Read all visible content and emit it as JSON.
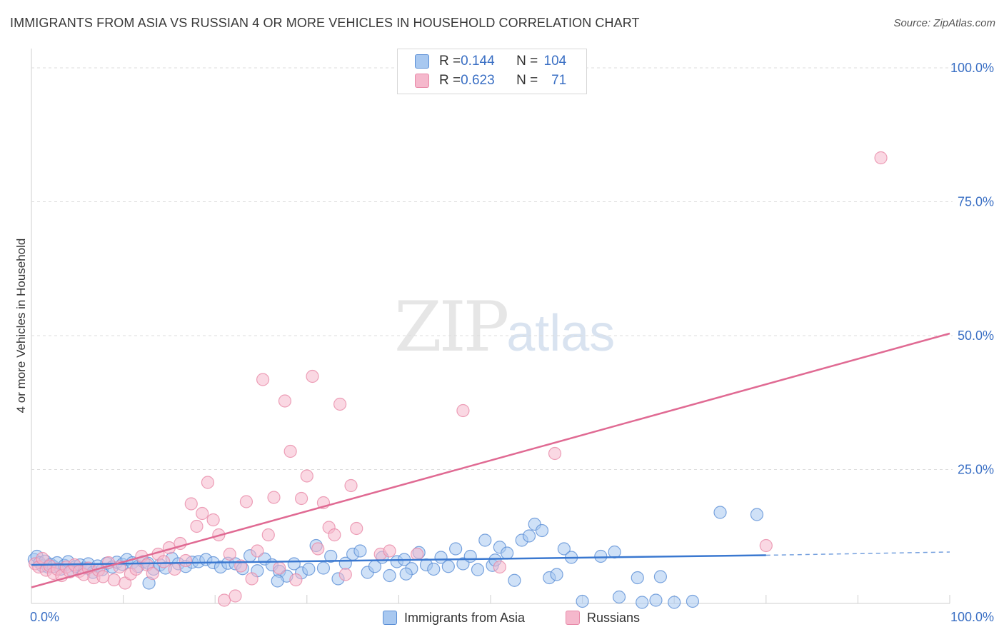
{
  "header": {
    "title": "IMMIGRANTS FROM ASIA VS RUSSIAN 4 OR MORE VEHICLES IN HOUSEHOLD CORRELATION CHART",
    "source": "Source: ZipAtlas.com"
  },
  "watermark": {
    "zip": "ZIP",
    "atlas": "atlas"
  },
  "legend": {
    "rows": [
      {
        "r_label": "R = ",
        "r_value": "0.144",
        "n_label": "N = ",
        "n_value": "104",
        "color": "#a8c8f0"
      },
      {
        "r_label": "R = ",
        "r_value": "0.623",
        "n_label": "N = ",
        "n_value": "71",
        "color": "#f5b8cc"
      }
    ]
  },
  "bottom_legend": {
    "items": [
      {
        "label": "Immigrants from Asia",
        "color": "#a8c8f0"
      },
      {
        "label": "Russians",
        "color": "#f5b8cc"
      }
    ]
  },
  "chart_data": {
    "type": "scatter",
    "title": "IMMIGRANTS FROM ASIA VS RUSSIAN 4 OR MORE VEHICLES IN HOUSEHOLD CORRELATION CHART",
    "xlabel": "",
    "ylabel": "4 or more Vehicles in Household",
    "xlim": [
      0,
      100
    ],
    "ylim": [
      0,
      100
    ],
    "x_tick_labels": [
      "0.0%",
      "100.0%"
    ],
    "y_tick_labels": [
      "100.0%",
      "75.0%",
      "50.0%",
      "25.0%"
    ],
    "y_tick_values": [
      100,
      75,
      50,
      25
    ],
    "grid": true,
    "colors": {
      "asia_fill": "#a8c8f0",
      "asia_stroke": "#5b8fd6",
      "asia_line": "#3a78d0",
      "russia_fill": "#f5b8cc",
      "russia_stroke": "#e889a8",
      "russia_line": "#e06a93"
    },
    "series": [
      {
        "name": "Immigrants from Asia",
        "trend": {
          "x": [
            0,
            80
          ],
          "y": [
            7.2,
            9.0
          ],
          "dashed_to": [
            100,
            9.6
          ]
        },
        "points": [
          [
            0.3,
            8.2
          ],
          [
            0.6,
            8.8
          ],
          [
            0.9,
            7.6
          ],
          [
            1.2,
            7.0
          ],
          [
            1.5,
            7.9
          ],
          [
            1.8,
            6.8
          ],
          [
            2.1,
            7.3
          ],
          [
            2.4,
            6.9
          ],
          [
            2.8,
            7.6
          ],
          [
            3.2,
            6.4
          ],
          [
            3.6,
            7.1
          ],
          [
            4.0,
            7.8
          ],
          [
            4.4,
            6.2
          ],
          [
            4.8,
            6.9
          ],
          [
            5.3,
            7.2
          ],
          [
            5.8,
            6.6
          ],
          [
            6.2,
            7.4
          ],
          [
            6.7,
            5.8
          ],
          [
            7.2,
            7.0
          ],
          [
            7.7,
            6.3
          ],
          [
            8.2,
            7.5
          ],
          [
            8.8,
            6.8
          ],
          [
            9.3,
            7.7
          ],
          [
            9.9,
            7.3
          ],
          [
            10.4,
            8.2
          ],
          [
            11.0,
            7.6
          ],
          [
            11.6,
            6.9
          ],
          [
            12.2,
            7.8
          ],
          [
            12.7,
            7.5
          ],
          [
            13.3,
            6.4
          ],
          [
            14.0,
            7.2
          ],
          [
            14.6,
            6.6
          ],
          [
            15.3,
            8.4
          ],
          [
            16.0,
            7.4
          ],
          [
            16.8,
            6.9
          ],
          [
            17.5,
            7.7
          ],
          [
            18.2,
            7.8
          ],
          [
            19.0,
            8.2
          ],
          [
            19.8,
            7.6
          ],
          [
            20.6,
            6.8
          ],
          [
            21.4,
            7.5
          ],
          [
            22.2,
            7.4
          ],
          [
            23.0,
            6.5
          ],
          [
            23.8,
            8.9
          ],
          [
            24.6,
            6.1
          ],
          [
            25.4,
            8.3
          ],
          [
            26.2,
            7.2
          ],
          [
            27.0,
            6.0
          ],
          [
            27.8,
            5.1
          ],
          [
            28.6,
            7.4
          ],
          [
            29.4,
            5.7
          ],
          [
            30.2,
            6.4
          ],
          [
            31.0,
            10.8
          ],
          [
            31.8,
            6.6
          ],
          [
            32.6,
            8.8
          ],
          [
            33.4,
            4.6
          ],
          [
            34.2,
            7.5
          ],
          [
            35.0,
            9.2
          ],
          [
            35.8,
            9.8
          ],
          [
            36.6,
            5.8
          ],
          [
            37.4,
            6.9
          ],
          [
            38.2,
            8.6
          ],
          [
            39.0,
            5.2
          ],
          [
            39.8,
            7.8
          ],
          [
            40.6,
            8.2
          ],
          [
            41.4,
            6.5
          ],
          [
            42.2,
            9.5
          ],
          [
            43.0,
            7.2
          ],
          [
            43.8,
            6.4
          ],
          [
            44.6,
            8.6
          ],
          [
            45.4,
            6.9
          ],
          [
            46.2,
            10.2
          ],
          [
            47.0,
            7.4
          ],
          [
            47.8,
            8.8
          ],
          [
            48.6,
            6.3
          ],
          [
            49.4,
            11.8
          ],
          [
            50.2,
            7.1
          ],
          [
            51.0,
            10.5
          ],
          [
            51.8,
            9.4
          ],
          [
            52.6,
            4.3
          ],
          [
            53.4,
            11.8
          ],
          [
            54.2,
            12.6
          ],
          [
            54.8,
            14.8
          ],
          [
            55.6,
            13.6
          ],
          [
            56.4,
            4.8
          ],
          [
            57.2,
            5.4
          ],
          [
            58.0,
            10.2
          ],
          [
            58.8,
            8.6
          ],
          [
            60.0,
            0.4
          ],
          [
            62.0,
            8.8
          ],
          [
            63.5,
            9.6
          ],
          [
            64.0,
            1.2
          ],
          [
            66.0,
            4.8
          ],
          [
            66.5,
            0.2
          ],
          [
            68.0,
            0.6
          ],
          [
            70.0,
            0.2
          ],
          [
            72.0,
            0.4
          ],
          [
            75.0,
            17.0
          ],
          [
            79.0,
            16.6
          ],
          [
            68.5,
            5.0
          ],
          [
            12.8,
            3.8
          ],
          [
            26.8,
            4.2
          ],
          [
            40.8,
            5.5
          ],
          [
            50.5,
            8.1
          ]
        ]
      },
      {
        "name": "Russians",
        "trend": {
          "x": [
            0,
            100
          ],
          "y": [
            3.0,
            50.4
          ]
        },
        "points": [
          [
            0.4,
            7.4
          ],
          [
            0.8,
            6.8
          ],
          [
            1.2,
            8.4
          ],
          [
            1.6,
            6.2
          ],
          [
            2.0,
            7.0
          ],
          [
            2.4,
            5.6
          ],
          [
            2.8,
            6.4
          ],
          [
            3.3,
            5.2
          ],
          [
            3.8,
            6.8
          ],
          [
            4.2,
            5.9
          ],
          [
            4.7,
            7.2
          ],
          [
            5.2,
            6.0
          ],
          [
            5.7,
            5.4
          ],
          [
            6.2,
            6.6
          ],
          [
            6.8,
            4.8
          ],
          [
            7.3,
            6.2
          ],
          [
            7.8,
            5.0
          ],
          [
            8.4,
            7.6
          ],
          [
            9.0,
            4.4
          ],
          [
            9.6,
            6.8
          ],
          [
            10.2,
            3.8
          ],
          [
            10.8,
            5.5
          ],
          [
            11.4,
            6.4
          ],
          [
            12.0,
            8.8
          ],
          [
            12.6,
            7.2
          ],
          [
            13.2,
            5.6
          ],
          [
            13.8,
            9.2
          ],
          [
            14.4,
            7.8
          ],
          [
            15.0,
            10.4
          ],
          [
            15.6,
            6.4
          ],
          [
            16.2,
            11.2
          ],
          [
            16.8,
            8.0
          ],
          [
            17.4,
            18.6
          ],
          [
            18.0,
            14.4
          ],
          [
            18.6,
            16.8
          ],
          [
            19.2,
            22.6
          ],
          [
            19.8,
            15.6
          ],
          [
            20.4,
            12.8
          ],
          [
            21.0,
            0.6
          ],
          [
            21.6,
            9.2
          ],
          [
            22.2,
            1.4
          ],
          [
            22.8,
            7.0
          ],
          [
            23.4,
            19.0
          ],
          [
            24.0,
            4.6
          ],
          [
            24.6,
            9.8
          ],
          [
            25.2,
            41.8
          ],
          [
            25.8,
            12.8
          ],
          [
            26.4,
            19.8
          ],
          [
            27.0,
            6.6
          ],
          [
            27.6,
            37.8
          ],
          [
            28.2,
            28.4
          ],
          [
            28.8,
            4.4
          ],
          [
            29.4,
            19.6
          ],
          [
            30.0,
            23.8
          ],
          [
            30.6,
            42.4
          ],
          [
            31.2,
            10.2
          ],
          [
            31.8,
            18.8
          ],
          [
            32.4,
            14.2
          ],
          [
            33.0,
            12.8
          ],
          [
            33.6,
            37.2
          ],
          [
            34.2,
            5.4
          ],
          [
            34.8,
            22.0
          ],
          [
            35.4,
            14.0
          ],
          [
            38.0,
            9.2
          ],
          [
            39.0,
            9.8
          ],
          [
            42.0,
            9.2
          ],
          [
            47.0,
            36.0
          ],
          [
            51.0,
            6.8
          ],
          [
            57.0,
            28.0
          ],
          [
            80.0,
            10.8
          ],
          [
            92.5,
            83.2
          ]
        ]
      }
    ]
  }
}
